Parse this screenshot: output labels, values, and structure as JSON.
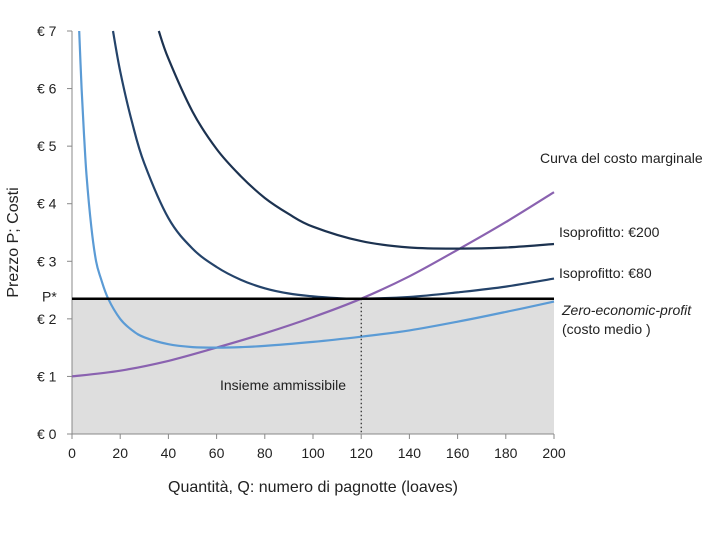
{
  "chart_data": {
    "type": "line",
    "xlabel": "Quantità, Q: numero di pagnotte (loaves)",
    "ylabel": "Prezzo P; Costi",
    "xlim": [
      0,
      200
    ],
    "ylim": [
      0,
      7
    ],
    "x_ticks": [
      "0",
      "20",
      "40",
      "60",
      "80",
      "100",
      "120",
      "140",
      "160",
      "180",
      "200"
    ],
    "y_ticks": [
      "€ 0",
      "€ 1",
      "€ 2",
      "€ 3",
      "€ 4",
      "€ 5",
      "€ 6",
      "€ 7"
    ],
    "p_star_label": "P*",
    "p_star_value": 2.35,
    "q_star": 120,
    "feasible_set_label": "Insieme ammissibile",
    "series": [
      {
        "name": "Curva del costo marginale",
        "color": "#8a62b0",
        "points": [
          [
            0,
            1.0
          ],
          [
            20,
            1.1
          ],
          [
            40,
            1.27
          ],
          [
            60,
            1.5
          ],
          [
            80,
            1.75
          ],
          [
            100,
            2.03
          ],
          [
            120,
            2.35
          ],
          [
            140,
            2.74
          ],
          [
            160,
            3.2
          ],
          [
            180,
            3.68
          ],
          [
            200,
            4.2
          ]
        ]
      },
      {
        "name": "Isoprofitto: €200",
        "color": "#1c3250",
        "points": [
          [
            36,
            7.0
          ],
          [
            40,
            6.52
          ],
          [
            50,
            5.6
          ],
          [
            60,
            4.95
          ],
          [
            70,
            4.48
          ],
          [
            80,
            4.1
          ],
          [
            90,
            3.82
          ],
          [
            100,
            3.6
          ],
          [
            120,
            3.35
          ],
          [
            140,
            3.24
          ],
          [
            160,
            3.22
          ],
          [
            180,
            3.24
          ],
          [
            200,
            3.3
          ]
        ]
      },
      {
        "name": "Isoprofitto: €80",
        "color": "#24436a",
        "points": [
          [
            17,
            7.0
          ],
          [
            20,
            6.3
          ],
          [
            25,
            5.4
          ],
          [
            30,
            4.7
          ],
          [
            40,
            3.75
          ],
          [
            50,
            3.22
          ],
          [
            60,
            2.9
          ],
          [
            70,
            2.68
          ],
          [
            80,
            2.53
          ],
          [
            90,
            2.44
          ],
          [
            100,
            2.39
          ],
          [
            110,
            2.36
          ],
          [
            120,
            2.35
          ],
          [
            140,
            2.38
          ],
          [
            160,
            2.46
          ],
          [
            180,
            2.56
          ],
          [
            200,
            2.7
          ]
        ]
      },
      {
        "name": "Zero-economic-profit",
        "subname": "(costo medio )",
        "color": "#5b9bd5",
        "points": [
          [
            3,
            7.0
          ],
          [
            4,
            6.0
          ],
          [
            5,
            5.2
          ],
          [
            6,
            4.5
          ],
          [
            8,
            3.6
          ],
          [
            10,
            3.0
          ],
          [
            12,
            2.7
          ],
          [
            15,
            2.35
          ],
          [
            20,
            2.0
          ],
          [
            25,
            1.8
          ],
          [
            30,
            1.68
          ],
          [
            40,
            1.56
          ],
          [
            50,
            1.51
          ],
          [
            60,
            1.5
          ],
          [
            70,
            1.51
          ],
          [
            80,
            1.53
          ],
          [
            100,
            1.6
          ],
          [
            120,
            1.69
          ],
          [
            140,
            1.8
          ],
          [
            160,
            1.95
          ],
          [
            180,
            2.12
          ],
          [
            200,
            2.3
          ]
        ]
      }
    ]
  }
}
